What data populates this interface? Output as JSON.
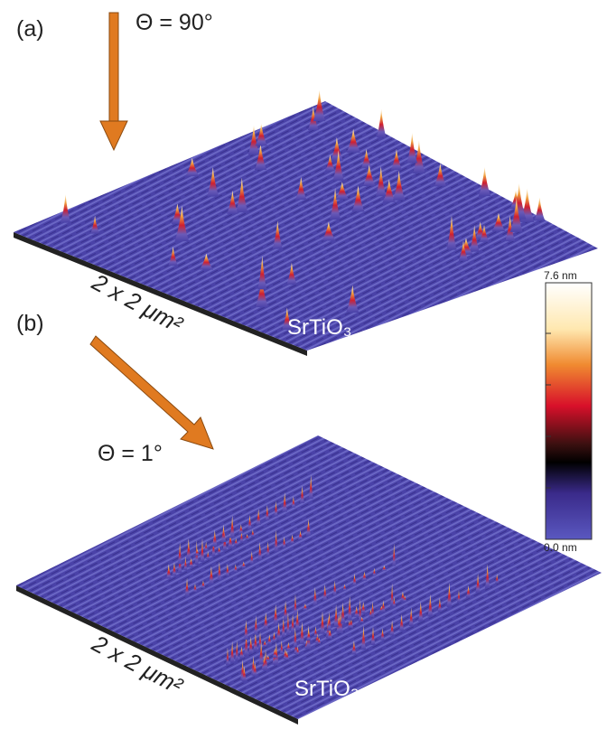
{
  "panels": [
    {
      "label": "(a)",
      "angle": "Θ = 90°",
      "scale": "2 x 2 μm²",
      "material": "SrTiO₃"
    },
    {
      "label": "(b)",
      "angle": "Θ = 1°",
      "scale": "2 x 2 μm²",
      "material": "SrTiO₃"
    }
  ],
  "colorbar": {
    "max": "7.6 nm",
    "min": "0.0 nm"
  }
}
